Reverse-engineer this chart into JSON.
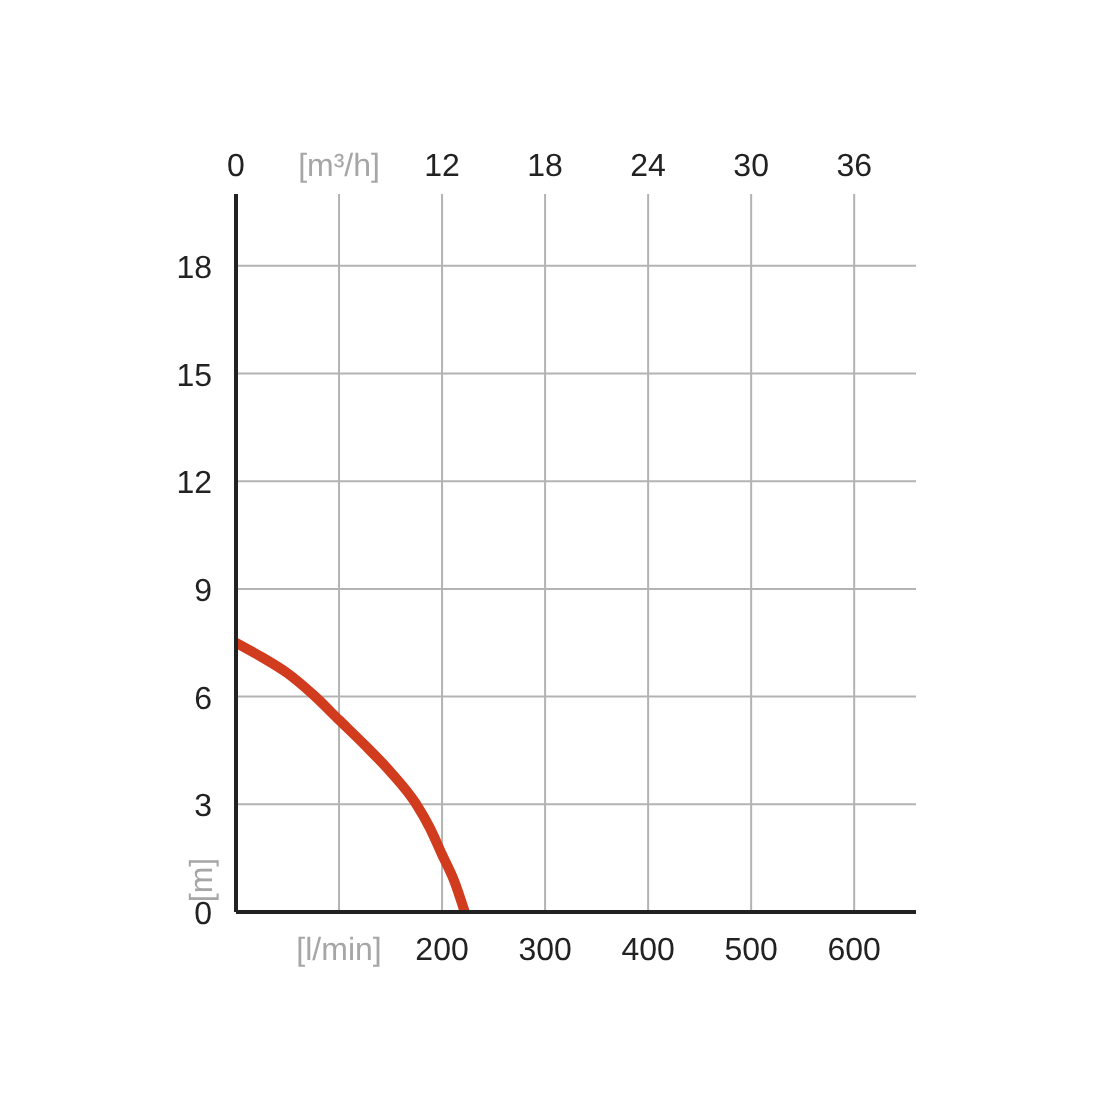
{
  "chart_data": {
    "type": "line",
    "xlabel": "[l/min]",
    "x2label": "[m³/h]",
    "ylabel": "[m]",
    "x": [
      0,
      25,
      50,
      75,
      100,
      125,
      150,
      175,
      188,
      200,
      212,
      222
    ],
    "values": [
      7.5,
      7.1,
      6.65,
      6.05,
      5.35,
      4.65,
      3.9,
      3,
      2.35,
      1.6,
      0.85,
      0
    ],
    "color": "#d13c1f",
    "xlim": [
      0,
      660
    ],
    "xticks": [
      {
        "value": 100,
        "label": null
      },
      200,
      300,
      400,
      500,
      600
    ],
    "x2lim": [
      0,
      39.6
    ],
    "x2ticks": [
      0,
      {
        "value": 6,
        "label": null
      },
      12,
      18,
      24,
      30,
      36
    ],
    "ylim": [
      0,
      20
    ],
    "yticks": [
      0,
      3,
      6,
      9,
      12,
      15,
      18
    ],
    "grid": true
  }
}
